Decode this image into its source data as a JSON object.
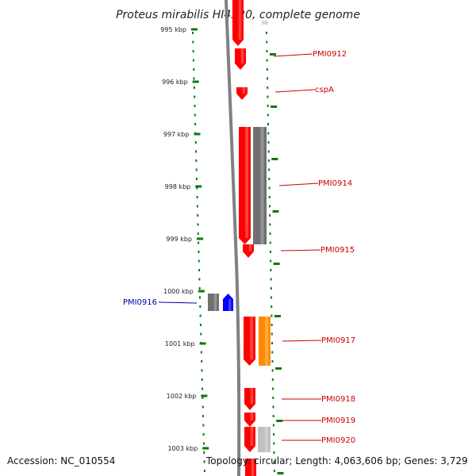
{
  "title": "Proteus mirabilis HI4320, complete genome",
  "footer": {
    "accession": "Accession: NC_010554",
    "topology": "Topology: circular; Length: 4,063,606 bp; Genes: 3,729"
  },
  "ticks": [
    "995 kbp",
    "996 kbp",
    "997 kbp",
    "998 kbp",
    "999 kbp",
    "1000 kbp",
    "1001 kbp",
    "1002 kbp",
    "1003 kbp"
  ],
  "gene_labels": [
    {
      "text": "PMI0912",
      "color": "#cc0000"
    },
    {
      "text": "cspA",
      "color": "#cc0000"
    },
    {
      "text": "PMI0914",
      "color": "#cc0000"
    },
    {
      "text": "PMI0915",
      "color": "#cc0000"
    },
    {
      "text": "PMI0916",
      "color": "#0000aa"
    },
    {
      "text": "PMI0917",
      "color": "#cc0000"
    },
    {
      "text": "PMI0918",
      "color": "#cc0000"
    },
    {
      "text": "PMI0919",
      "color": "#cc0000"
    },
    {
      "text": "PMI0920",
      "color": "#cc0000"
    }
  ],
  "colors": {
    "cds_red": "#ff0000",
    "cds_blue": "#0000ff",
    "feature_gray": "#707070",
    "feature_orange": "#ff8c00",
    "feature_lightgray": "#c0c0c0",
    "tick_green": "#0a7a0a",
    "backbone": "#808080"
  }
}
